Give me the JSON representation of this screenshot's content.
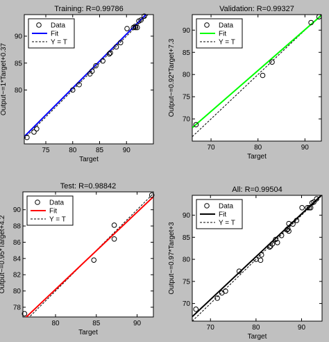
{
  "chart_data": [
    {
      "type": "scatter",
      "title": "Training: R=0.99786",
      "xlabel": "Target",
      "ylabel": "Output~=1*Target+0.37",
      "xlim": [
        71,
        95
      ],
      "ylim": [
        70,
        94
      ],
      "xticks": [
        75,
        80,
        85,
        90
      ],
      "yticks": [
        80,
        85,
        90
      ],
      "fit_color": "#0000ff",
      "fit": {
        "slope": 1.0,
        "intercept": 0.37
      },
      "points": [
        [
          71.5,
          71.2
        ],
        [
          72.8,
          72.2
        ],
        [
          73.3,
          72.8
        ],
        [
          80.0,
          80.0
        ],
        [
          81.2,
          81.0
        ],
        [
          83.2,
          83.0
        ],
        [
          83.6,
          83.5
        ],
        [
          84.3,
          84.5
        ],
        [
          85.6,
          85.4
        ],
        [
          86.8,
          86.7
        ],
        [
          87.0,
          86.9
        ],
        [
          88.1,
          88.0
        ],
        [
          88.9,
          88.8
        ],
        [
          90.1,
          91.4
        ],
        [
          91.3,
          91.6
        ],
        [
          91.6,
          91.8
        ],
        [
          91.7,
          91.6
        ],
        [
          92.0,
          91.6
        ],
        [
          92.3,
          92.8
        ],
        [
          92.7,
          93.0
        ],
        [
          93.3,
          93.7
        ]
      ],
      "legend": [
        "Data",
        "Fit",
        "Y = T"
      ],
      "grid": false,
      "legend_position": "top-left"
    },
    {
      "type": "scatter",
      "title": "Validation: R=0.99327",
      "xlabel": "Target",
      "ylabel": "Output~=0.92*Target+7.3",
      "xlim": [
        66,
        93.5
      ],
      "ylim": [
        65,
        93.5
      ],
      "xticks": [
        70,
        80,
        90
      ],
      "yticks": [
        70,
        75,
        80,
        85,
        90
      ],
      "fit_color": "#00ff00",
      "fit": {
        "slope": 0.92,
        "intercept": 7.3
      },
      "points": [
        [
          66.8,
          68.7
        ],
        [
          81.0,
          79.8
        ],
        [
          83.0,
          82.8
        ],
        [
          91.3,
          91.7
        ],
        [
          93.0,
          93.0
        ]
      ],
      "legend": [
        "Data",
        "Fit",
        "Y = T"
      ],
      "grid": false,
      "legend_position": "top-left"
    },
    {
      "type": "scatter",
      "title": "Test: R=0.98842",
      "xlabel": "Target",
      "ylabel": "Output~=0.95*Target+4.2",
      "xlim": [
        76,
        92
      ],
      "ylim": [
        76.8,
        92.2
      ],
      "xticks": [
        80,
        85,
        90
      ],
      "yticks": [
        78,
        80,
        82,
        84,
        86,
        88,
        90
      ],
      "fit_color": "#ff0000",
      "fit": {
        "slope": 0.95,
        "intercept": 4.2
      },
      "points": [
        [
          76.2,
          77.2
        ],
        [
          84.7,
          83.8
        ],
        [
          87.2,
          86.4
        ],
        [
          87.2,
          88.1
        ],
        [
          91.8,
          91.8
        ]
      ],
      "legend": [
        "Data",
        "Fit",
        "Y = T"
      ],
      "grid": false,
      "legend_position": "top-left"
    },
    {
      "type": "scatter",
      "title": "All: R=0.99504",
      "xlabel": "Target",
      "ylabel": "Output~=0.97*Target+3",
      "xlim": [
        66,
        94.5
      ],
      "ylim": [
        66,
        94.5
      ],
      "xticks": [
        70,
        80,
        90
      ],
      "yticks": [
        70,
        75,
        80,
        85,
        90
      ],
      "fit_color": "#000000",
      "fit": {
        "slope": 0.97,
        "intercept": 3.0
      },
      "points": [
        [
          66.8,
          68.7
        ],
        [
          71.5,
          71.2
        ],
        [
          72.5,
          72.4
        ],
        [
          73.3,
          72.8
        ],
        [
          76.3,
          77.3
        ],
        [
          80.0,
          80.0
        ],
        [
          81.0,
          79.8
        ],
        [
          81.2,
          81.0
        ],
        [
          83.0,
          82.8
        ],
        [
          83.2,
          83.0
        ],
        [
          83.6,
          83.5
        ],
        [
          84.3,
          84.5
        ],
        [
          84.7,
          83.8
        ],
        [
          85.6,
          85.4
        ],
        [
          86.8,
          86.7
        ],
        [
          87.0,
          86.9
        ],
        [
          87.2,
          86.4
        ],
        [
          87.2,
          88.1
        ],
        [
          88.1,
          88.0
        ],
        [
          88.9,
          88.8
        ],
        [
          90.1,
          91.7
        ],
        [
          91.3,
          91.7
        ],
        [
          91.7,
          91.7
        ],
        [
          92.0,
          91.7
        ],
        [
          92.3,
          92.8
        ],
        [
          92.7,
          93.0
        ],
        [
          93.3,
          93.7
        ]
      ],
      "legend": [
        "Data",
        "Fit",
        "Y = T"
      ],
      "grid": false,
      "legend_position": "top-left"
    }
  ]
}
